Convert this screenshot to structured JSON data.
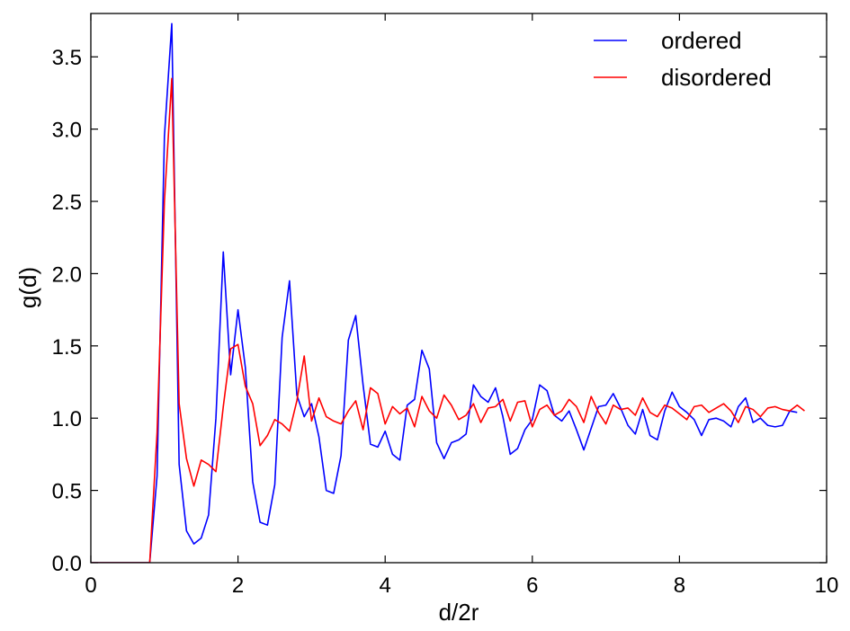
{
  "chart_data": {
    "type": "line",
    "xlabel": "d/2r",
    "ylabel": "g(d)",
    "xlim": [
      0,
      10
    ],
    "ylim": [
      0,
      3.8
    ],
    "xticks": [
      "0",
      "2",
      "4",
      "6",
      "8",
      "10"
    ],
    "xtick_values": [
      0,
      2,
      4,
      6,
      8,
      10
    ],
    "yticks": [
      "0.0",
      "0.5",
      "1.0",
      "1.5",
      "2.0",
      "2.5",
      "3.0",
      "3.5"
    ],
    "ytick_values": [
      0,
      0.5,
      1.0,
      1.5,
      2.0,
      2.5,
      3.0,
      3.5
    ],
    "legend_position": "top-right",
    "grid": false,
    "series": [
      {
        "name": "ordered",
        "color": "#0000ff",
        "points": [
          [
            0,
            0
          ],
          [
            0.8,
            0
          ],
          [
            0.9,
            0.6
          ],
          [
            1.0,
            2.95
          ],
          [
            1.1,
            3.73
          ],
          [
            1.2,
            0.68
          ],
          [
            1.3,
            0.22
          ],
          [
            1.4,
            0.13
          ],
          [
            1.5,
            0.17
          ],
          [
            1.6,
            0.33
          ],
          [
            1.7,
            1.0
          ],
          [
            1.8,
            2.15
          ],
          [
            1.9,
            1.3
          ],
          [
            2.0,
            1.75
          ],
          [
            2.1,
            1.35
          ],
          [
            2.2,
            0.56
          ],
          [
            2.3,
            0.28
          ],
          [
            2.4,
            0.26
          ],
          [
            2.5,
            0.54
          ],
          [
            2.6,
            1.56
          ],
          [
            2.7,
            1.95
          ],
          [
            2.8,
            1.16
          ],
          [
            2.9,
            1.01
          ],
          [
            3.0,
            1.1
          ],
          [
            3.1,
            0.87
          ],
          [
            3.2,
            0.5
          ],
          [
            3.3,
            0.48
          ],
          [
            3.4,
            0.74
          ],
          [
            3.5,
            1.54
          ],
          [
            3.6,
            1.71
          ],
          [
            3.7,
            1.23
          ],
          [
            3.8,
            0.82
          ],
          [
            3.9,
            0.8
          ],
          [
            4.0,
            0.91
          ],
          [
            4.1,
            0.75
          ],
          [
            4.2,
            0.71
          ],
          [
            4.3,
            1.09
          ],
          [
            4.4,
            1.13
          ],
          [
            4.5,
            1.47
          ],
          [
            4.6,
            1.34
          ],
          [
            4.7,
            0.83
          ],
          [
            4.8,
            0.72
          ],
          [
            4.9,
            0.83
          ],
          [
            5.0,
            0.85
          ],
          [
            5.1,
            0.89
          ],
          [
            5.2,
            1.23
          ],
          [
            5.3,
            1.15
          ],
          [
            5.4,
            1.11
          ],
          [
            5.5,
            1.21
          ],
          [
            5.6,
            1.01
          ],
          [
            5.7,
            0.75
          ],
          [
            5.8,
            0.79
          ],
          [
            5.9,
            0.92
          ],
          [
            6.0,
            0.99
          ],
          [
            6.1,
            1.23
          ],
          [
            6.2,
            1.19
          ],
          [
            6.3,
            1.02
          ],
          [
            6.4,
            0.98
          ],
          [
            6.5,
            1.05
          ],
          [
            6.6,
            0.92
          ],
          [
            6.7,
            0.78
          ],
          [
            6.8,
            0.93
          ],
          [
            6.9,
            1.08
          ],
          [
            7.0,
            1.09
          ],
          [
            7.1,
            1.17
          ],
          [
            7.2,
            1.07
          ],
          [
            7.3,
            0.95
          ],
          [
            7.4,
            0.89
          ],
          [
            7.5,
            1.06
          ],
          [
            7.6,
            0.88
          ],
          [
            7.7,
            0.85
          ],
          [
            7.8,
            1.05
          ],
          [
            7.9,
            1.18
          ],
          [
            8.0,
            1.08
          ],
          [
            8.1,
            1.04
          ],
          [
            8.2,
            0.99
          ],
          [
            8.3,
            0.88
          ],
          [
            8.4,
            0.99
          ],
          [
            8.5,
            1.0
          ],
          [
            8.6,
            0.98
          ],
          [
            8.7,
            0.94
          ],
          [
            8.8,
            1.08
          ],
          [
            8.9,
            1.14
          ],
          [
            9.0,
            0.97
          ],
          [
            9.1,
            1.0
          ],
          [
            9.2,
            0.95
          ],
          [
            9.3,
            0.94
          ],
          [
            9.4,
            0.95
          ],
          [
            9.5,
            1.05
          ],
          [
            9.6,
            1.04
          ]
        ]
      },
      {
        "name": "disordered",
        "color": "#ff0000",
        "points": [
          [
            0,
            0
          ],
          [
            0.8,
            0
          ],
          [
            0.9,
            0.9
          ],
          [
            1.0,
            2.5
          ],
          [
            1.1,
            3.35
          ],
          [
            1.2,
            1.1
          ],
          [
            1.3,
            0.72
          ],
          [
            1.4,
            0.53
          ],
          [
            1.5,
            0.71
          ],
          [
            1.6,
            0.68
          ],
          [
            1.7,
            0.63
          ],
          [
            1.8,
            1.08
          ],
          [
            1.9,
            1.48
          ],
          [
            2.0,
            1.51
          ],
          [
            2.1,
            1.22
          ],
          [
            2.2,
            1.1
          ],
          [
            2.3,
            0.81
          ],
          [
            2.4,
            0.88
          ],
          [
            2.5,
            0.99
          ],
          [
            2.6,
            0.96
          ],
          [
            2.7,
            0.91
          ],
          [
            2.8,
            1.12
          ],
          [
            2.9,
            1.43
          ],
          [
            3.0,
            0.98
          ],
          [
            3.1,
            1.14
          ],
          [
            3.2,
            1.01
          ],
          [
            3.3,
            0.98
          ],
          [
            3.4,
            0.96
          ],
          [
            3.5,
            1.05
          ],
          [
            3.6,
            1.12
          ],
          [
            3.7,
            0.92
          ],
          [
            3.8,
            1.21
          ],
          [
            3.9,
            1.17
          ],
          [
            4.0,
            0.96
          ],
          [
            4.1,
            1.08
          ],
          [
            4.2,
            1.03
          ],
          [
            4.3,
            1.07
          ],
          [
            4.4,
            0.94
          ],
          [
            4.5,
            1.15
          ],
          [
            4.6,
            1.05
          ],
          [
            4.7,
            1.0
          ],
          [
            4.8,
            1.16
          ],
          [
            4.9,
            1.09
          ],
          [
            5.0,
            0.99
          ],
          [
            5.1,
            1.02
          ],
          [
            5.2,
            1.1
          ],
          [
            5.3,
            0.97
          ],
          [
            5.4,
            1.07
          ],
          [
            5.5,
            1.08
          ],
          [
            5.6,
            1.13
          ],
          [
            5.7,
            0.98
          ],
          [
            5.8,
            1.11
          ],
          [
            5.9,
            1.12
          ],
          [
            6.0,
            0.94
          ],
          [
            6.1,
            1.06
          ],
          [
            6.2,
            1.09
          ],
          [
            6.3,
            1.02
          ],
          [
            6.4,
            1.05
          ],
          [
            6.5,
            1.13
          ],
          [
            6.6,
            1.08
          ],
          [
            6.7,
            0.97
          ],
          [
            6.8,
            1.15
          ],
          [
            6.9,
            1.04
          ],
          [
            7.0,
            0.96
          ],
          [
            7.1,
            1.09
          ],
          [
            7.2,
            1.06
          ],
          [
            7.3,
            1.07
          ],
          [
            7.4,
            1.02
          ],
          [
            7.5,
            1.14
          ],
          [
            7.6,
            1.04
          ],
          [
            7.7,
            1.01
          ],
          [
            7.8,
            1.09
          ],
          [
            7.9,
            1.07
          ],
          [
            8.0,
            1.03
          ],
          [
            8.1,
            0.99
          ],
          [
            8.2,
            1.08
          ],
          [
            8.3,
            1.09
          ],
          [
            8.4,
            1.04
          ],
          [
            8.5,
            1.07
          ],
          [
            8.6,
            1.1
          ],
          [
            8.7,
            1.05
          ],
          [
            8.8,
            0.97
          ],
          [
            8.9,
            1.08
          ],
          [
            9.0,
            1.06
          ],
          [
            9.1,
            1.01
          ],
          [
            9.2,
            1.07
          ],
          [
            9.3,
            1.08
          ],
          [
            9.4,
            1.06
          ],
          [
            9.5,
            1.05
          ],
          [
            9.6,
            1.09
          ],
          [
            9.7,
            1.05
          ]
        ]
      }
    ]
  }
}
